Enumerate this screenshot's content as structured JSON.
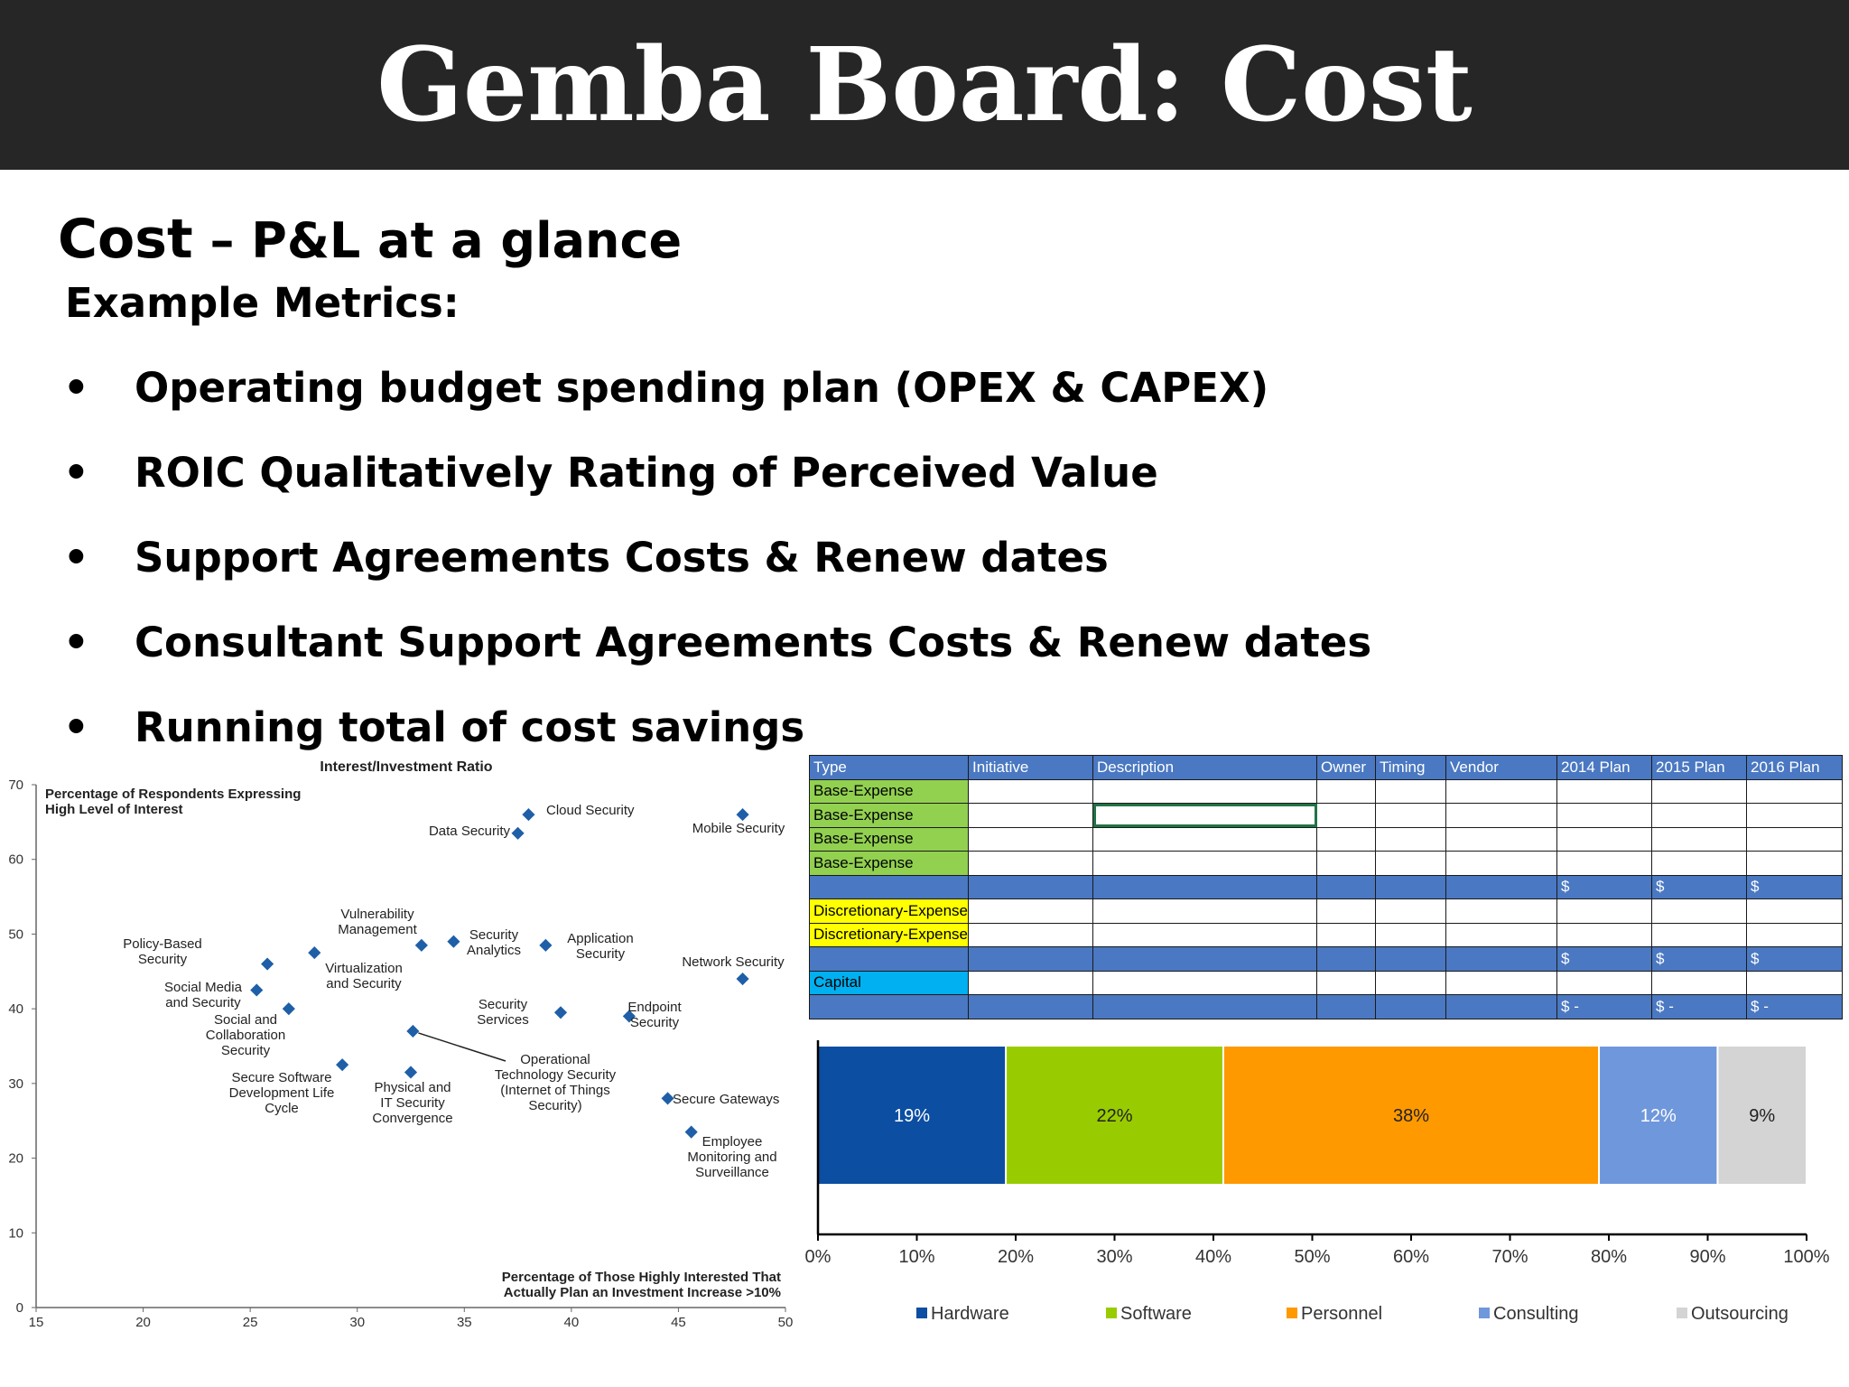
{
  "slide": {
    "title": "Gemba Board: Cost",
    "subtitle_strong": "Cost",
    "subtitle_rest": " – P&L at a glance",
    "metrics_label": "Example Metrics:",
    "bullets": [
      "Operating budget spending plan (OPEX & CAPEX)",
      "ROIC Qualitatively Rating of Perceived Value",
      "Support Agreements Costs & Renew dates",
      "Consultant Support Agreements Costs & Renew dates",
      "Running total of cost savings"
    ],
    "bullet_glyph": "•"
  },
  "chart_data": [
    {
      "type": "scatter",
      "title": "Interest/Investment Ratio",
      "ylabel": "Percentage of Respondents Expressing High Level of Interest",
      "xlabel": "Percentage of Those Highly Interested That Actually Plan an Investment Increase >10%",
      "xlim": [
        15,
        50
      ],
      "ylim": [
        0,
        70
      ],
      "x_ticks": [
        "15",
        "20",
        "25",
        "30",
        "35",
        "40",
        "45",
        "50"
      ],
      "y_ticks": [
        "0",
        "10",
        "20",
        "30",
        "40",
        "50",
        "60",
        "70"
      ],
      "marker_color": "#1f5fa8",
      "points": [
        {
          "label": "Cloud Security",
          "x": 38,
          "y": 66
        },
        {
          "label": "Data Security",
          "x": 37.5,
          "y": 63.5
        },
        {
          "label": "Mobile Security",
          "x": 48,
          "y": 66
        },
        {
          "label": "Policy-Based Security",
          "x": 25.8,
          "y": 46
        },
        {
          "label": "Vulnerability Management",
          "x": 28,
          "y": 47.5
        },
        {
          "label": "Virtualization and Security",
          "x": 33,
          "y": 48.5
        },
        {
          "label": "Security Analytics",
          "x": 34.5,
          "y": 49
        },
        {
          "label": "Application Security",
          "x": 38.8,
          "y": 48.5
        },
        {
          "label": "Network Security",
          "x": 48,
          "y": 44
        },
        {
          "label": "Social Media and Security",
          "x": 25.3,
          "y": 42.5
        },
        {
          "label": "Social and Collaboration Security",
          "x": 26.8,
          "y": 40
        },
        {
          "label": "Security Services",
          "x": 39.5,
          "y": 39.5
        },
        {
          "label": "Endpoint Security",
          "x": 42.7,
          "y": 39
        },
        {
          "label": "Operational Technology Security (Internet of Things Security)",
          "x": 32.6,
          "y": 37
        },
        {
          "label": "Secure Software Development Life Cycle",
          "x": 29.3,
          "y": 32.5
        },
        {
          "label": "Physical and IT Security Convergence",
          "x": 32.5,
          "y": 31.5
        },
        {
          "label": "Secure Gateways",
          "x": 44.5,
          "y": 28
        },
        {
          "label": "Employee Monitoring and Surveillance",
          "x": 45.6,
          "y": 23.5
        }
      ]
    },
    {
      "type": "table",
      "columns": [
        "Type",
        "Initiative",
        "Description",
        "Owner",
        "Timing",
        "Vendor",
        "2014 Plan",
        "2015 Plan",
        "2016 Plan"
      ],
      "rows": [
        {
          "type": "Base-Expense",
          "kind": "base",
          "cells": [
            "",
            "",
            "",
            "",
            "",
            "",
            "",
            ""
          ]
        },
        {
          "type": "Base-Expense",
          "kind": "base",
          "cells": [
            "",
            "",
            "",
            "",
            "",
            "",
            "",
            ""
          ]
        },
        {
          "type": "Base-Expense",
          "kind": "base",
          "cells": [
            "",
            "",
            "",
            "",
            "",
            "",
            "",
            ""
          ]
        },
        {
          "type": "Base-Expense",
          "kind": "base",
          "cells": [
            "",
            "",
            "",
            "",
            "",
            "",
            "",
            ""
          ]
        },
        {
          "type": "",
          "kind": "subtotal",
          "cells": [
            "",
            "",
            "",
            "",
            "",
            "$",
            "$",
            "$"
          ]
        },
        {
          "type": "Discretionary-Expense",
          "kind": "disc",
          "cells": [
            "",
            "",
            "",
            "",
            "",
            "",
            "",
            ""
          ]
        },
        {
          "type": "Discretionary-Expense",
          "kind": "disc",
          "cells": [
            "",
            "",
            "",
            "",
            "",
            "",
            "",
            ""
          ]
        },
        {
          "type": "",
          "kind": "subtotal",
          "cells": [
            "",
            "",
            "",
            "",
            "",
            "$",
            "$",
            "$"
          ]
        },
        {
          "type": "Capital",
          "kind": "cap",
          "cells": [
            "",
            "",
            "",
            "",
            "",
            "",
            "",
            ""
          ]
        },
        {
          "type": "",
          "kind": "subtotal",
          "cells": [
            "",
            "",
            "",
            "",
            "",
            "$        -",
            "$        -",
            "$        -"
          ]
        }
      ]
    },
    {
      "type": "bar",
      "orientation": "horizontal-stacked",
      "xlim": [
        0,
        100
      ],
      "x_ticks": [
        "0%",
        "10%",
        "20%",
        "30%",
        "40%",
        "50%",
        "60%",
        "70%",
        "80%",
        "90%",
        "100%"
      ],
      "series": [
        {
          "name": "Hardware",
          "value": 19,
          "label": "19%",
          "color": "#0b4ea2"
        },
        {
          "name": "Software",
          "value": 22,
          "label": "22%",
          "color": "#99cc00"
        },
        {
          "name": "Personnel",
          "value": 38,
          "label": "38%",
          "color": "#ff9900"
        },
        {
          "name": "Consulting",
          "value": 12,
          "label": "12%",
          "color": "#6f97dc"
        },
        {
          "name": "Outsourcing",
          "value": 9,
          "label": "9%",
          "color": "#d4d4d4"
        }
      ]
    }
  ]
}
